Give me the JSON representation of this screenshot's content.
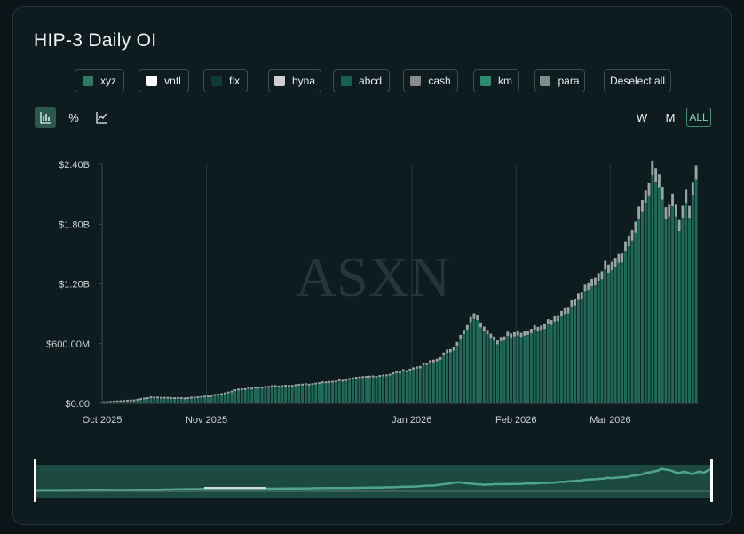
{
  "title": "HIP-3 Daily OI",
  "legend": [
    {
      "label": "xyz",
      "color": "#2e7a64"
    },
    {
      "label": "vntl",
      "color": "#ffffff"
    },
    {
      "label": "flx",
      "color": "#0e3b32"
    },
    {
      "label": "hyna",
      "color": "#cfcfcf"
    },
    {
      "label": "abcd",
      "color": "#16604e"
    },
    {
      "label": "cash",
      "color": "#8a8a8a"
    },
    {
      "label": "km",
      "color": "#2c8c70"
    },
    {
      "label": "para",
      "color": "#7c8e8a"
    }
  ],
  "deselect_label": "Deselect all",
  "tools": [
    {
      "name": "bar-chart-icon",
      "glyph": "bar",
      "active": true
    },
    {
      "name": "percent-icon",
      "glyph": "%",
      "active": false
    },
    {
      "name": "line-chart-icon",
      "glyph": "line",
      "active": false
    }
  ],
  "ranges": [
    {
      "label": "W",
      "active": false
    },
    {
      "label": "M",
      "active": false
    },
    {
      "label": "ALL",
      "active": true
    }
  ],
  "watermark": "ASXN",
  "colors": {
    "bar": "#1f6b57",
    "bar_top": "#9aa5a3",
    "grid": "#223538",
    "axis": "#3a4b4e",
    "text": "#c8d0d0"
  },
  "chart_data": {
    "type": "bar",
    "title": "HIP-3 Daily OI",
    "x_start": "2025-10-01",
    "x_end": "2026-03-26",
    "x_ticks": [
      "Oct 2025",
      "Nov 2025",
      "Jan 2026",
      "Feb 2026",
      "Mar 2026"
    ],
    "x_tick_dates": [
      "2025-10-01",
      "2025-11-01",
      "2026-01-01",
      "2026-02-01",
      "2026-03-01"
    ],
    "y_ticks": [
      "$0.00",
      "$600.00M",
      "$1.20B",
      "$1.80B",
      "$2.40B"
    ],
    "y_tick_values": [
      0,
      0.6,
      1.2,
      1.8,
      2.4
    ],
    "ylim": [
      0,
      2.4
    ],
    "y_unit": "B USD",
    "stacked": true,
    "series_order": [
      "xyz",
      "vntl",
      "flx",
      "hyna",
      "abcd",
      "cash",
      "km",
      "para"
    ],
    "total_oi_keypoints": [
      [
        "2025-10-01",
        0.02
      ],
      [
        "2025-10-10",
        0.04
      ],
      [
        "2025-10-15",
        0.07
      ],
      [
        "2025-10-25",
        0.06
      ],
      [
        "2025-11-01",
        0.08
      ],
      [
        "2025-11-06",
        0.11
      ],
      [
        "2025-11-10",
        0.15
      ],
      [
        "2025-11-20",
        0.18
      ],
      [
        "2025-12-01",
        0.2
      ],
      [
        "2025-12-15",
        0.26
      ],
      [
        "2025-12-25",
        0.3
      ],
      [
        "2026-01-01",
        0.36
      ],
      [
        "2026-01-08",
        0.45
      ],
      [
        "2026-01-13",
        0.58
      ],
      [
        "2026-01-17",
        0.78
      ],
      [
        "2026-01-19",
        0.92
      ],
      [
        "2026-01-21",
        0.83
      ],
      [
        "2026-01-24",
        0.72
      ],
      [
        "2026-01-26",
        0.62
      ],
      [
        "2026-01-29",
        0.72
      ],
      [
        "2026-02-03",
        0.73
      ],
      [
        "2026-02-08",
        0.8
      ],
      [
        "2026-02-13",
        0.9
      ],
      [
        "2026-02-18",
        1.05
      ],
      [
        "2026-02-22",
        1.2
      ],
      [
        "2026-02-27",
        1.4
      ],
      [
        "2026-03-04",
        1.55
      ],
      [
        "2026-03-08",
        1.82
      ],
      [
        "2026-03-11",
        2.15
      ],
      [
        "2026-03-13",
        2.38
      ],
      [
        "2026-03-15",
        2.3
      ],
      [
        "2026-03-17",
        1.95
      ],
      [
        "2026-03-19",
        2.05
      ],
      [
        "2026-03-21",
        1.85
      ],
      [
        "2026-03-23",
        2.12
      ],
      [
        "2026-03-24",
        1.95
      ],
      [
        "2026-03-26",
        2.38
      ]
    ]
  }
}
